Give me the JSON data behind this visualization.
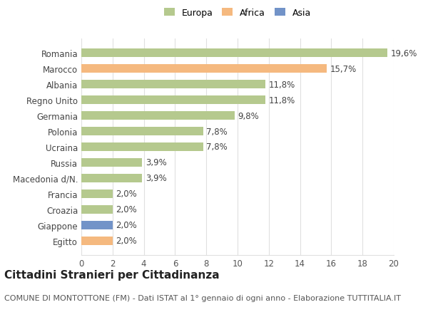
{
  "countries": [
    "Egitto",
    "Giappone",
    "Croazia",
    "Francia",
    "Macedonia d/N.",
    "Russia",
    "Ucraina",
    "Polonia",
    "Germania",
    "Regno Unito",
    "Albania",
    "Marocco",
    "Romania"
  ],
  "values": [
    2.0,
    2.0,
    2.0,
    2.0,
    3.9,
    3.9,
    7.8,
    7.8,
    9.8,
    11.8,
    11.8,
    15.7,
    19.6
  ],
  "labels": [
    "2,0%",
    "2,0%",
    "2,0%",
    "2,0%",
    "3,9%",
    "3,9%",
    "7,8%",
    "7,8%",
    "9,8%",
    "11,8%",
    "11,8%",
    "15,7%",
    "19,6%"
  ],
  "colors": [
    "#f5b97f",
    "#7293c8",
    "#b5c98e",
    "#b5c98e",
    "#b5c98e",
    "#b5c98e",
    "#b5c98e",
    "#b5c98e",
    "#b5c98e",
    "#b5c98e",
    "#b5c98e",
    "#f5b97f",
    "#b5c98e"
  ],
  "legend_items": [
    {
      "label": "Europa",
      "color": "#b5c98e"
    },
    {
      "label": "Africa",
      "color": "#f5b97f"
    },
    {
      "label": "Asia",
      "color": "#7293c8"
    }
  ],
  "title": "Cittadini Stranieri per Cittadinanza",
  "subtitle": "COMUNE DI MONTOTTONE (FM) - Dati ISTAT al 1° gennaio di ogni anno - Elaborazione TUTTITALIA.IT",
  "xlim": [
    0,
    20
  ],
  "xticks": [
    0,
    2,
    4,
    6,
    8,
    10,
    12,
    14,
    16,
    18,
    20
  ],
  "background_color": "#ffffff",
  "bar_height": 0.55,
  "label_fontsize": 8.5,
  "title_fontsize": 11,
  "subtitle_fontsize": 8,
  "tick_fontsize": 8.5,
  "ytick_fontsize": 8.5,
  "grid_color": "#e0e0e0"
}
